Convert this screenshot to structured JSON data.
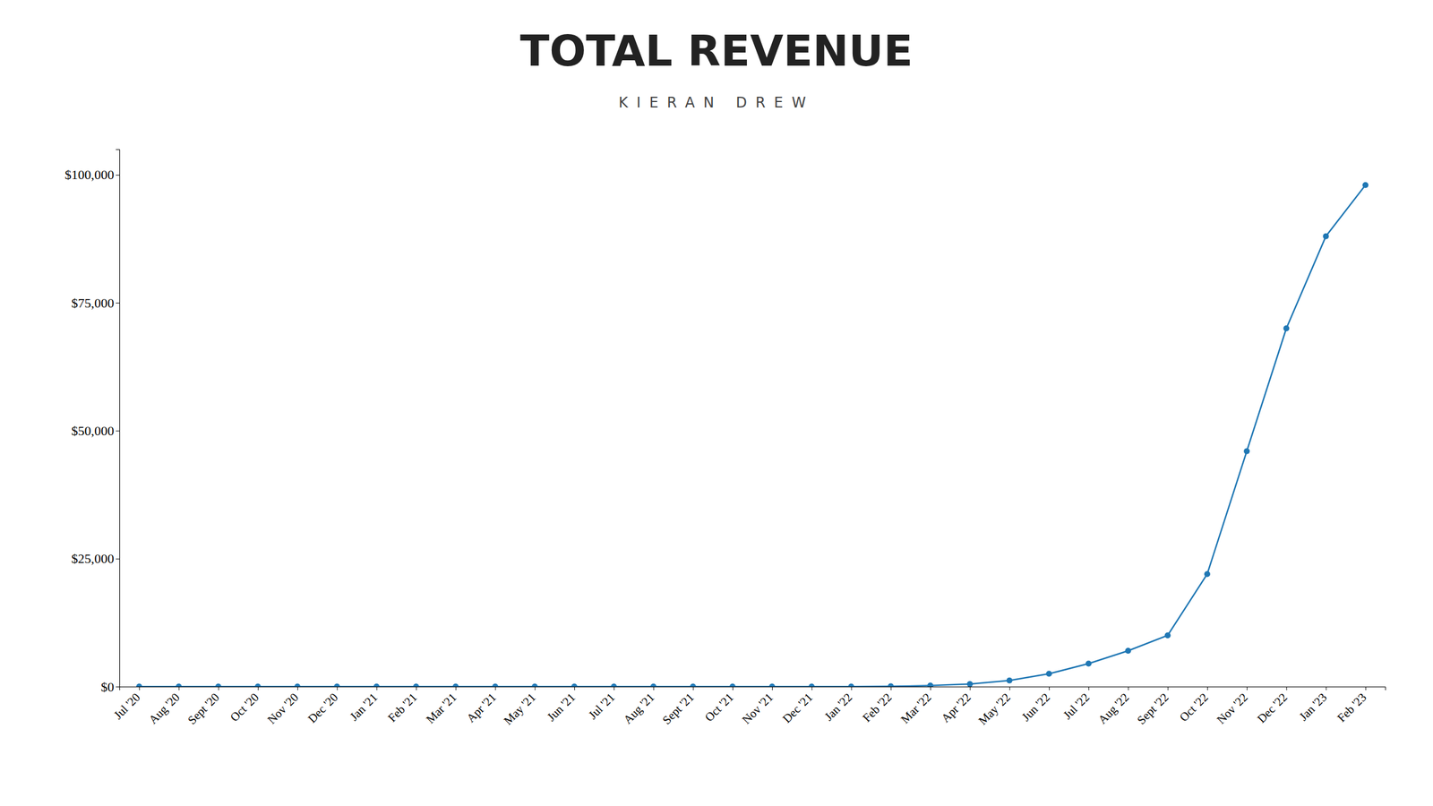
{
  "chart_data": {
    "type": "line",
    "title": "TOTAL REVENUE",
    "subtitle": "KIERAN DREW",
    "categories": [
      "Jul '20",
      "Aug '20",
      "Sept '20",
      "Oct '20",
      "Nov '20",
      "Dec '20",
      "Jan '21",
      "Feb '21",
      "Mar '21",
      "Apr '21",
      "May '21",
      "Jun '21",
      "Jul '21",
      "Aug '21",
      "Sept '21",
      "Oct '21",
      "Nov '21",
      "Dec '21",
      "Jan '22",
      "Feb '22",
      "Mar '22",
      "Apr '22",
      "May '22",
      "Jun '22",
      "Jul '22",
      "Aug '22",
      "Sept '22",
      "Oct '22",
      "Nov '22",
      "Dec '22",
      "Jan '23",
      "Feb '23"
    ],
    "values": [
      0,
      0,
      0,
      0,
      0,
      0,
      0,
      0,
      0,
      0,
      0,
      0,
      0,
      0,
      0,
      0,
      0,
      0,
      0,
      50,
      200,
      500,
      1200,
      2500,
      4500,
      7000,
      10000,
      22000,
      46000,
      70000,
      88000,
      98000
    ],
    "ylim": [
      0,
      105000
    ],
    "yticks": [
      {
        "value": 0,
        "label": "$0"
      },
      {
        "value": 25000,
        "label": "$25,000"
      },
      {
        "value": 50000,
        "label": "$50,000"
      },
      {
        "value": 75000,
        "label": "$75,000"
      },
      {
        "value": 100000,
        "label": "$100,000"
      }
    ],
    "grid": false,
    "marker": "circle"
  }
}
